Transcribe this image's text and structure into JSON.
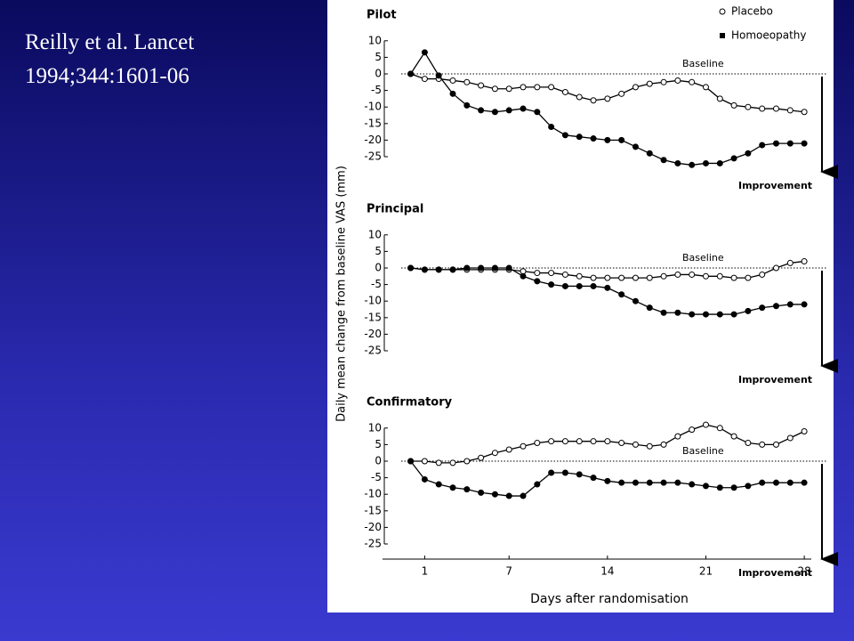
{
  "citation": [
    "Reilly et al. Lancet",
    "1994;344:1601-06"
  ],
  "chart_data": [
    {
      "type": "line",
      "title": "Pilot",
      "legend": true,
      "baseline_label": "Baseline",
      "direction_label": "Improvement",
      "x": [
        0,
        1,
        2,
        3,
        4,
        5,
        6,
        7,
        8,
        9,
        10,
        11,
        12,
        13,
        14,
        15,
        16,
        17,
        18,
        19,
        20,
        21,
        22,
        23,
        24,
        25,
        26,
        27,
        28
      ],
      "xlim": [
        -2,
        28.5
      ],
      "ylim": [
        -25,
        10
      ],
      "yticks": [
        10,
        5,
        0,
        -5,
        -10,
        -15,
        -20,
        -25
      ],
      "series": [
        {
          "name": "Placebo",
          "color": "#000000",
          "marker": "open-circle",
          "values": [
            0,
            -1.5,
            -1.5,
            -2,
            -2.5,
            -3.5,
            -4.5,
            -4.5,
            -4,
            -4,
            -4,
            -5.5,
            -7,
            -8,
            -7.5,
            -6,
            -4,
            -3,
            -2.5,
            -2,
            -2.5,
            -4,
            -7.5,
            -9.5,
            -10,
            -10.5,
            -10.5,
            -11,
            -11.5
          ]
        },
        {
          "name": "Homoeopathy",
          "color": "#000000",
          "marker": "filled-circle",
          "values": [
            0,
            6.5,
            -0.5,
            -6,
            -9.5,
            -11,
            -11.5,
            -11,
            -10.5,
            -11.5,
            -16,
            -18.5,
            -19,
            -19.5,
            -20,
            -20,
            -22,
            -24,
            -26,
            -27,
            -27.5,
            -27,
            -27,
            -25.5,
            -24,
            -21.5,
            -21,
            -21,
            -21
          ]
        }
      ]
    },
    {
      "type": "line",
      "title": "Principal",
      "ylabel": "Daily mean change from baseline VAS (mm)",
      "baseline_label": "Baseline",
      "direction_label": "Improvement",
      "x": [
        0,
        1,
        2,
        3,
        4,
        5,
        6,
        7,
        8,
        9,
        10,
        11,
        12,
        13,
        14,
        15,
        16,
        17,
        18,
        19,
        20,
        21,
        22,
        23,
        24,
        25,
        26,
        27,
        28
      ],
      "xlim": [
        -2,
        28.5
      ],
      "ylim": [
        -25,
        10
      ],
      "yticks": [
        10,
        5,
        0,
        -5,
        -10,
        -15,
        -20,
        -25
      ],
      "series": [
        {
          "color": "#000000",
          "marker": "open-circle",
          "values": [
            0,
            -0.5,
            -0.5,
            -0.5,
            -0.5,
            -0.5,
            -0.5,
            -0.5,
            -1,
            -1.5,
            -1.5,
            -2,
            -2.5,
            -3,
            -3,
            -3,
            -3,
            -3,
            -2.5,
            -2,
            -2,
            -2.5,
            -2.5,
            -3,
            -3,
            -2,
            0,
            1.5,
            2
          ]
        },
        {
          "color": "#000000",
          "marker": "filled-circle",
          "values": [
            0,
            -0.5,
            -0.5,
            -0.5,
            0,
            0,
            0,
            0,
            -2.5,
            -4,
            -5,
            -5.5,
            -5.5,
            -5.5,
            -6,
            -8,
            -10,
            -12,
            -13.5,
            -13.5,
            -14,
            -14,
            -14,
            -14,
            -13,
            -12,
            -11.5,
            -11,
            -11
          ]
        }
      ]
    },
    {
      "type": "line",
      "title": "Confirmatory",
      "xlabel": "Days after randomisation",
      "baseline_label": "Baseline",
      "direction_label": "Improvement",
      "x": [
        0,
        1,
        2,
        3,
        4,
        5,
        6,
        7,
        8,
        9,
        10,
        11,
        12,
        13,
        14,
        15,
        16,
        17,
        18,
        19,
        20,
        21,
        22,
        23,
        24,
        25,
        26,
        27,
        28
      ],
      "xlim": [
        -2,
        28.5
      ],
      "xticks": [
        1,
        7,
        14,
        21,
        28
      ],
      "ylim": [
        -25,
        10
      ],
      "yticks": [
        10,
        5,
        0,
        -5,
        -10,
        -15,
        -20,
        -25
      ],
      "series": [
        {
          "color": "#000000",
          "marker": "open-circle",
          "values": [
            0,
            0,
            -0.5,
            -0.5,
            0,
            1,
            2.5,
            3.5,
            4.5,
            5.5,
            6,
            6,
            6,
            6,
            6,
            5.5,
            5,
            4.5,
            5,
            7.5,
            9.5,
            11,
            10,
            7.5,
            5.5,
            5,
            5,
            7,
            9
          ]
        },
        {
          "color": "#000000",
          "marker": "filled-circle",
          "values": [
            0,
            -5.5,
            -7,
            -8,
            -8.5,
            -9.5,
            -10,
            -10.5,
            -10.5,
            -7,
            -3.5,
            -3.5,
            -4,
            -5,
            -6,
            -6.5,
            -6.5,
            -6.5,
            -6.5,
            -6.5,
            -7,
            -7.5,
            -8,
            -8,
            -7.5,
            -6.5,
            -6.5,
            -6.5,
            -6.5
          ]
        }
      ]
    }
  ]
}
